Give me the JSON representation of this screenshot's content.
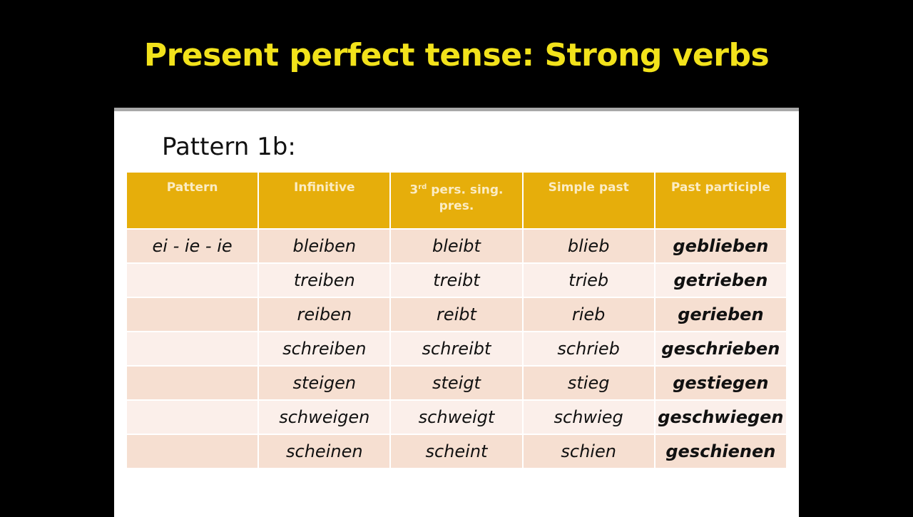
{
  "title": "Present perfect tense: Strong verbs",
  "subtitle": "Pattern 1b:",
  "colors": {
    "header": "#E6AE0B",
    "title": "#F2E21B",
    "row_odd": "#F6DFD1",
    "row_even": "#FBEFEA"
  },
  "headers": {
    "pattern": "Pattern",
    "infinitive": "Infinitive",
    "third_num": "3",
    "third_sup": "rd",
    "third_rest": " pers. sing. pres.",
    "simple_past": "Simple past",
    "past_participle": "Past participle"
  },
  "rows": [
    [
      "ei - ie - ie",
      "bleiben",
      "bleibt",
      "blieb",
      "geblieben"
    ],
    [
      "",
      "treiben",
      "treibt",
      "trieb",
      "getrieben"
    ],
    [
      "",
      "reiben",
      "reibt",
      "rieb",
      "gerieben"
    ],
    [
      "",
      "schreiben",
      "schreibt",
      "schrieb",
      "geschrieben"
    ],
    [
      "",
      "steigen",
      "steigt",
      "stieg",
      "gestiegen"
    ],
    [
      "",
      "schweigen",
      "schweigt",
      "schwieg",
      "geschwiegen"
    ],
    [
      "",
      "scheinen",
      "scheint",
      "schien",
      "geschienen"
    ]
  ]
}
